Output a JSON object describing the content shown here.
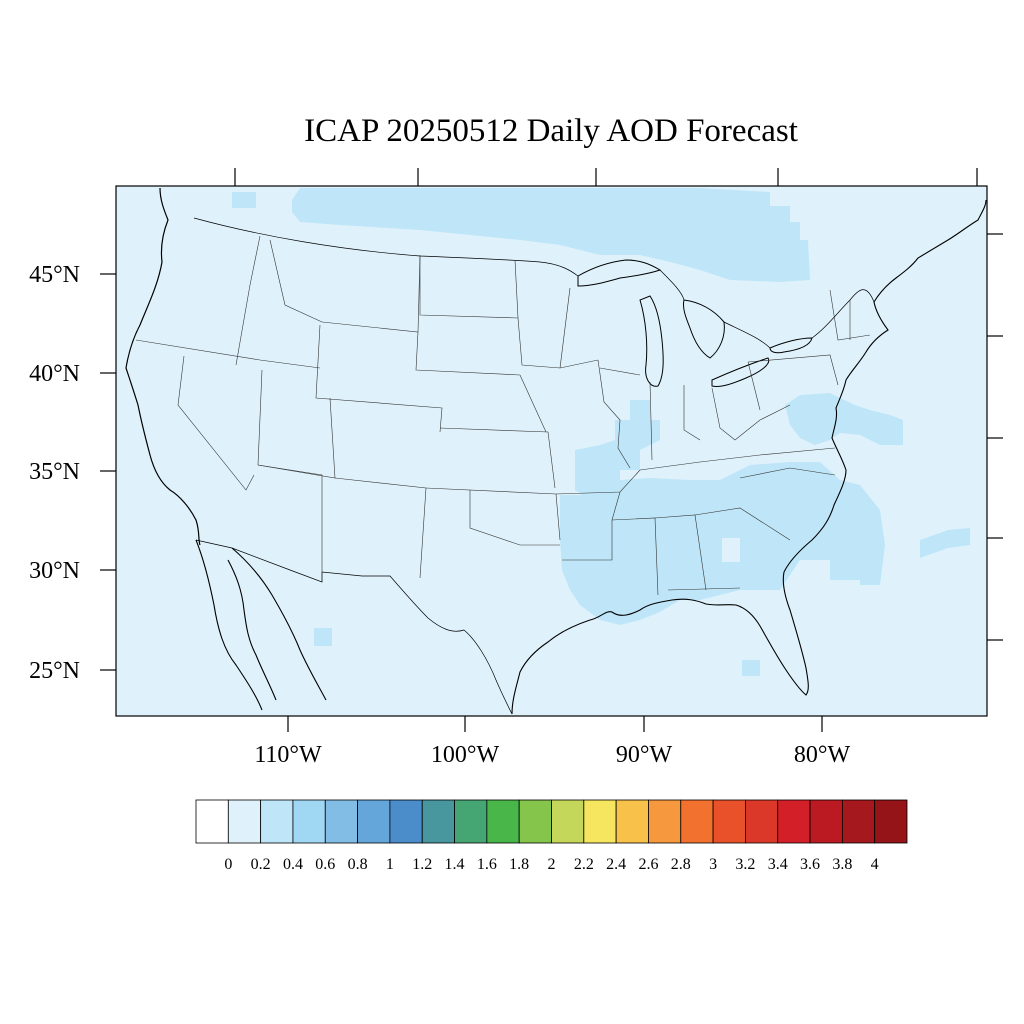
{
  "title": "ICAP 20250512 Daily AOD Forecast",
  "map": {
    "background_color": "#dff2fb",
    "lat_labels": [
      "45°N",
      "40°N",
      "35°N",
      "30°N",
      "25°N"
    ],
    "lat_values": [
      45,
      40,
      35,
      30,
      25
    ],
    "lon_labels": [
      "110°W",
      "100°W",
      "90°W",
      "80°W"
    ],
    "lon_values": [
      -110,
      -100,
      -90,
      -80
    ],
    "aod_regions": [
      {
        "name": "canada-plume",
        "level": 0.2,
        "color": "#bfe6f8"
      },
      {
        "name": "rocky-mtn-patch",
        "level": 0.2,
        "color": "#bfe6f8"
      },
      {
        "name": "mississippi-valley-plume",
        "level": 0.2,
        "color": "#bfe6f8"
      },
      {
        "name": "southeast-plume",
        "level": 0.2,
        "color": "#bfe6f8"
      },
      {
        "name": "mid-atlantic-plume",
        "level": 0.2,
        "color": "#bfe6f8"
      },
      {
        "name": "atlantic-offshore-plume",
        "level": 0.2,
        "color": "#bfe6f8"
      },
      {
        "name": "mexico-patch",
        "level": 0.2,
        "color": "#bfe6f8"
      },
      {
        "name": "cuba-patch",
        "level": 0.2,
        "color": "#bfe6f8"
      }
    ]
  },
  "colorbar": {
    "colors": [
      "#ffffff",
      "#dff2fb",
      "#bfe6f8",
      "#a0d8f3",
      "#82bde6",
      "#65a6da",
      "#4a8dca",
      "#48979f",
      "#45a573",
      "#48b648",
      "#86c54c",
      "#c4d75a",
      "#f6e55f",
      "#f7c14a",
      "#f6983d",
      "#f3712e",
      "#e8512a",
      "#dc3829",
      "#d31f28",
      "#bb1a23",
      "#a5181e",
      "#941417"
    ],
    "labels": [
      "0",
      "0.2",
      "0.4",
      "0.6",
      "0.8",
      "1",
      "1.2",
      "1.4",
      "1.6",
      "1.8",
      "2",
      "2.2",
      "2.4",
      "2.6",
      "2.8",
      "3",
      "3.2",
      "3.4",
      "3.6",
      "3.8",
      "4"
    ]
  }
}
